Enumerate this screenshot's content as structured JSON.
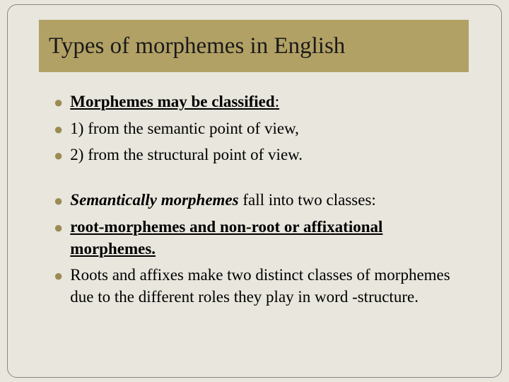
{
  "slide": {
    "background_color": "#e8e6dd",
    "frame_border_color": "#888888",
    "frame_border_radius": 14,
    "title_banner_color": "#b2a165",
    "bullet_color": "#9a8b52",
    "text_color": "#000000",
    "title_fontsize": 33,
    "body_fontsize": 23
  },
  "title": "Types of morphemes in English",
  "bullets": {
    "b1": "Morphemes may be classified",
    "b2": "1) from the semantic point of view,",
    "b3": "2) from the structural point of view.",
    "b4_prefix": "Semantically morphemes",
    "b4_rest": " fall into two classes:",
    "b5": "root-morphemes and non-root or affixational morphemes.",
    "b6": "Roots and affixes make two distinct classes of morphemes due to the different roles they play in word -structure."
  }
}
